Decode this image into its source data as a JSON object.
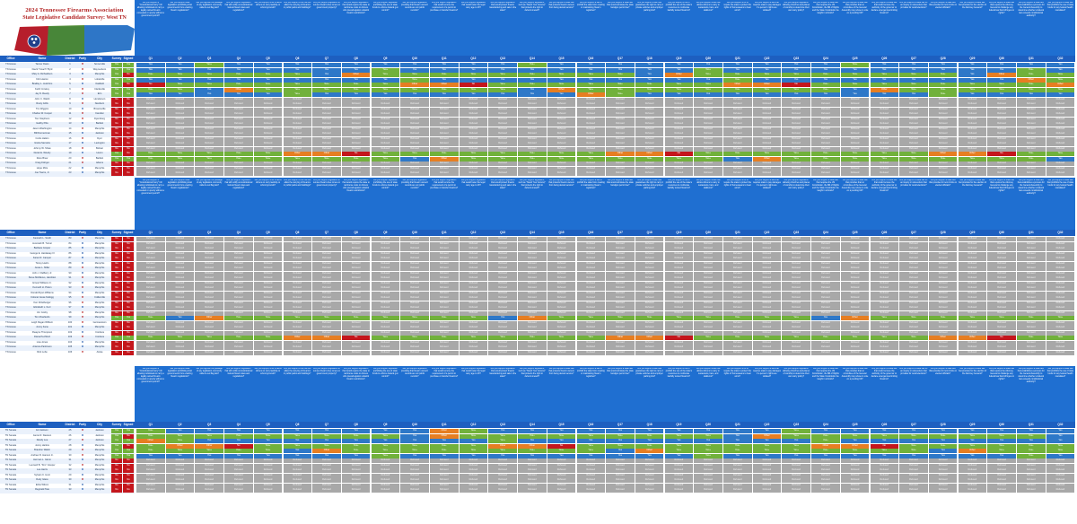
{
  "header": {
    "title": "2024 Tennessee Firearms Association",
    "subtitle": "State Legislative Candidate Survey: West TN"
  },
  "colors": {
    "Yes": "#2e78c8",
    "Yes+": "#71b13b",
    "No": "#c4161c",
    "Other": "#e67e22",
    "Refused": "#a8a8a8",
    "header_band": "#1f6fd1",
    "column_header": "#1d5fc0"
  },
  "columns": {
    "office": "Office",
    "name": "Name",
    "district": "District",
    "party": "Party",
    "city": "City",
    "survey": "Survey Returned",
    "signed": "Signed the leadership form",
    "questions": [
      "Q1",
      "Q2",
      "Q3",
      "Q4",
      "Q5",
      "Q6",
      "Q7",
      "Q8",
      "Q9",
      "Q10",
      "Q11",
      "Q12",
      "Q13",
      "Q14",
      "Q15",
      "Q16",
      "Q17",
      "Q18",
      "Q19",
      "Q20",
      "Q21",
      "Q22",
      "Q23",
      "Q24",
      "Q25",
      "Q26",
      "Q27",
      "Q28",
      "Q29",
      "Q30",
      "Q31",
      "Q32"
    ]
  },
  "question_texts": [
    "Will you support a \"Constitutional Carry\" bill allowing individuals to carry a legally-owned firearm concealed or openly without a government permit?",
    "Will you support state legislation prohibiting local governments from enacting firearm regulations?",
    "Will you oppose the passage of any legislation commonly called a red flag law?",
    "Will you support legislation that will nullify unconstitutional federal firearm laws and regulations?",
    "Will you support a bill to allow citizens to carry lawfully on school grounds?",
    "Will you support a bill that will allow the carrying of firearms in public parks and buildings?",
    "Will you support legislation to remove firearm-free zones on government property?",
    "Will you support legislation that would require the state to reimburse costs to citizens who prevail against unlawful firearm restrictions?",
    "Will you support legislation prohibiting the use of state funds to enforce federal gun control?",
    "Will you support legislation providing that firearm owners' records are not public records?",
    "Will you support legislation that would remove the requirement of a permit to purchase or transfer firearms?",
    "Will you support legislation that would lower the legal carry age to 18?",
    "Will you support legislation that would protect firearm manufacturing and sale in the state?",
    "Will you support legislation, such as \"Stand Your Ground,\" that protects the right to defend oneself?",
    "Will you support a state law that protects firearm owners from being denied service?",
    "Will you support a law to prohibit the state from creating or maintaining firearm registries?",
    "Will you support a state law that would eliminate the state handgun permit fee?",
    "Will you support a law that guarantees the right to carry in private vehicles and employer parking lots?",
    "Will you support a bill to prohibit the use of the state's resources to confiscate lawfully owned firearms?",
    "Will you support a law that allows citizens to carry in restaurants, bars, and stadiums?",
    "Will you support a bill to require the state to protect the rights of Tennesseans to bear arms?",
    "Will you support a law that requires state to pay damages if a person's rights are violated?",
    "Will you support legislation allowing churches and places of worship to determine their own carry policy?",
    "Will you support a state law that requires the US Constitution, the Bill of Rights and the State Constitution be taught in schools?",
    "Will you support a state law that provides that no committee of the General Assembly may refuse to vote on a pending bill?",
    "Will you support a state law that would remove the authority of the governor to declare emergencies limiting firearms?",
    "Will you support a state law for an inquiry or referendum that provides for recall elections?",
    "Will you support a state law that provides for term limits on elected officials?",
    "Will you support a state law that provides for the election of the Attorney General?",
    "Will you support a state law that requires the Attorney General to challenge any federal law that infringes on rights?",
    "Will you support a state law that establishes a process for the General Assembly to determine whether a federal law exceeds constitutional authority?",
    "Will you support a state law that prohibits the use of state funds for any federal health mandates?"
  ],
  "sections": [
    {
      "rows": [
        {
          "office": "TN House",
          "name": "Tanner Davis",
          "district": "1",
          "party": "R",
          "city": "Somerville",
          "survey": "Yes",
          "signed": "Yes",
          "pattern": "Y"
        },
        {
          "office": "TN House",
          "name": "David \"Coach\" Byrd",
          "district": "2",
          "party": "R",
          "city": "Waynesboro",
          "survey": "Yes",
          "signed": "Yes",
          "pattern": "Y"
        },
        {
          "office": "TN House",
          "name": "Mary A. Richardson",
          "district": "3",
          "party": "D",
          "city": "Memphis",
          "survey": "Yes",
          "signed": "No",
          "pattern": "G"
        },
        {
          "office": "TN House",
          "name": "Kirk Haston",
          "district": "4",
          "party": "R",
          "city": "Lobelville",
          "survey": "Yes",
          "signed": "Yes",
          "pattern": "Y"
        },
        {
          "office": "TN House",
          "name": "Bradley L. Hutchins",
          "district": "5",
          "party": "D",
          "city": "Oakfield",
          "survey": "Yes",
          "signed": "No",
          "pattern": "O"
        },
        {
          "office": "TN House",
          "name": "Keith Crowley",
          "district": "6",
          "party": "R",
          "city": "Clarksville",
          "survey": "Yes",
          "signed": "Yes",
          "pattern": "G"
        },
        {
          "office": "TN House",
          "name": "Jay D. Reedy",
          "district": "7",
          "party": "R",
          "city": "Erin",
          "survey": "Yes",
          "signed": "Yes",
          "pattern": "Y"
        },
        {
          "office": "TN House",
          "name": "John C. Walsh",
          "district": "8",
          "party": "D",
          "city": "Henderson",
          "survey": "No",
          "signed": "No",
          "pattern": "R"
        },
        {
          "office": "TN House",
          "name": "Rusty Grills",
          "district": "9",
          "party": "R",
          "city": "Newbern",
          "survey": "No",
          "signed": "No",
          "pattern": "R"
        },
        {
          "office": "TN House",
          "name": "Tim Wiggins",
          "district": "10",
          "party": "D",
          "city": "Brownsville",
          "survey": "No",
          "signed": "No",
          "pattern": "R"
        },
        {
          "office": "TN House",
          "name": "Charles W. Cooper",
          "district": "11",
          "party": "R",
          "city": "Camden",
          "survey": "No",
          "signed": "No",
          "pattern": "R"
        },
        {
          "office": "TN House",
          "name": "Tom Stephens",
          "district": "12",
          "party": "R",
          "city": "Dyersburg",
          "survey": "No",
          "signed": "No",
          "pattern": "R"
        },
        {
          "office": "TN House",
          "name": "Gabby Pitts",
          "district": "13",
          "party": "D",
          "city": "Bartlett",
          "survey": "No",
          "signed": "No",
          "pattern": "R"
        },
        {
          "office": "TN House",
          "name": "Jason Washington",
          "district": "14",
          "party": "R",
          "city": "Memphis",
          "survey": "No",
          "signed": "No",
          "pattern": "R"
        },
        {
          "office": "TN House",
          "name": "Bill Dunnerman",
          "district": "15",
          "party": "D",
          "city": "Jackson",
          "survey": "No",
          "signed": "No",
          "pattern": "R"
        },
        {
          "office": "TN House",
          "name": "Curtis Halton",
          "district": "16",
          "party": "R",
          "city": "Dyer",
          "survey": "No",
          "signed": "No",
          "pattern": "R"
        },
        {
          "office": "TN House",
          "name": "Gretta Samstra",
          "district": "17",
          "party": "D",
          "city": "Lexington",
          "survey": "No",
          "signed": "No",
          "pattern": "R"
        },
        {
          "office": "TN House",
          "name": "Johnny W. Shaw",
          "district": "18",
          "party": "R",
          "city": "Bolivar",
          "survey": "No",
          "signed": "No",
          "pattern": "R"
        },
        {
          "office": "TN House",
          "name": "Derek E. Woody",
          "district": "19",
          "party": "D",
          "city": "Huron",
          "survey": "Yes",
          "signed": "No",
          "pattern": "O"
        },
        {
          "office": "TN House",
          "name": "Ross Brew",
          "district": "20",
          "party": "R",
          "city": "Bartlett",
          "survey": "Yes",
          "signed": "Yes",
          "pattern": "G"
        },
        {
          "office": "TN House",
          "name": "Craig Fishgut",
          "district": "21",
          "party": "R",
          "city": "Adams",
          "survey": "No",
          "signed": "No",
          "pattern": "R"
        },
        {
          "office": "TN House",
          "name": "Hope Mize",
          "district": "22",
          "party": "D",
          "city": "Memphis",
          "survey": "No",
          "signed": "No",
          "pattern": "R"
        },
        {
          "office": "TN House",
          "name": "Joe Towns, Jr.",
          "district": "23",
          "party": "D",
          "city": "Memphis",
          "survey": "No",
          "signed": "No",
          "pattern": "R"
        }
      ]
    },
    {
      "rows": [
        {
          "office": "TN House",
          "name": "Kenneth L. Smith",
          "district": "83",
          "party": "R",
          "city": "Memphis",
          "survey": "No",
          "signed": "No",
          "pattern": "R"
        },
        {
          "office": "TN House",
          "name": "Jeremiah B. Turner",
          "district": "84",
          "party": "D",
          "city": "Memphis",
          "survey": "No",
          "signed": "No",
          "pattern": "R"
        },
        {
          "office": "TN House",
          "name": "Barbara Cooper",
          "district": "85",
          "party": "D",
          "city": "Memphis",
          "survey": "No",
          "signed": "No",
          "pattern": "R"
        },
        {
          "office": "TN House",
          "name": "George E. Hardaway III",
          "district": "86",
          "party": "D",
          "city": "Memphis",
          "survey": "No",
          "signed": "No",
          "pattern": "R"
        },
        {
          "office": "TN House",
          "name": "Karen R. Camper",
          "district": "87",
          "party": "D",
          "city": "Memphis",
          "survey": "No",
          "signed": "No",
          "pattern": "R"
        },
        {
          "office": "TN House",
          "name": "Torrey Harris",
          "district": "88",
          "party": "D",
          "city": "Memphis",
          "survey": "No",
          "signed": "No",
          "pattern": "R"
        },
        {
          "office": "TN House",
          "name": "Jesse L. Miller",
          "district": "89",
          "party": "R",
          "city": "Memphis",
          "survey": "No",
          "signed": "No",
          "pattern": "R"
        },
        {
          "office": "TN House",
          "name": "John J. DeBerry Jr.",
          "district": "90",
          "party": "D",
          "city": "Memphis",
          "survey": "No",
          "signed": "No",
          "pattern": "R"
        },
        {
          "office": "TN House",
          "name": "Steve McManus, Hamblen",
          "district": "91",
          "party": "R",
          "city": "Memphis",
          "survey": "No",
          "signed": "No",
          "pattern": "R"
        },
        {
          "office": "TN House",
          "name": "Ernest Williams Jr.",
          "district": "92",
          "party": "D",
          "city": "Memphis",
          "survey": "No",
          "signed": "No",
          "pattern": "R"
        },
        {
          "office": "TN House",
          "name": "Kenneth H. Pistun",
          "district": "93",
          "party": "R",
          "city": "Memphis",
          "survey": "No",
          "signed": "No",
          "pattern": "R"
        },
        {
          "office": "TN House",
          "name": "Donald Ryan Williams",
          "district": "94",
          "party": "D",
          "city": "Memphis",
          "survey": "No",
          "signed": "No",
          "pattern": "R"
        },
        {
          "office": "TN House",
          "name": "Colonel Jesse Kellogg",
          "district": "95",
          "party": "R",
          "city": "Collierville",
          "survey": "No",
          "signed": "No",
          "pattern": "R"
        },
        {
          "office": "TN House",
          "name": "Ken Zitzelberger",
          "district": "96",
          "party": "R",
          "city": "Memphis",
          "survey": "No",
          "signed": "No",
          "pattern": "R"
        },
        {
          "office": "TN House",
          "name": "Elizabeth L. Kerr",
          "district": "97",
          "party": "D",
          "city": "Memphis",
          "survey": "No",
          "signed": "No",
          "pattern": "R"
        },
        {
          "office": "TN House",
          "name": "Jim Cosby",
          "district": "98",
          "party": "R",
          "city": "Memphis",
          "survey": "No",
          "signed": "No",
          "pattern": "R"
        },
        {
          "office": "TN House",
          "name": "Tom Rowlands",
          "district": "99",
          "party": "R",
          "city": "Memphis",
          "survey": "Yes",
          "signed": "Yes",
          "pattern": "G"
        },
        {
          "office": "TN House",
          "name": "Leigh Regan Wilburn",
          "district": "100",
          "party": "R",
          "city": "Germantown",
          "survey": "No",
          "signed": "No",
          "pattern": "R"
        },
        {
          "office": "TN House",
          "name": "Junny Kane",
          "district": "101",
          "party": "D",
          "city": "Memphis",
          "survey": "No",
          "signed": "No",
          "pattern": "R"
        },
        {
          "office": "TN House",
          "name": "Dwayne Thompson",
          "district": "102",
          "party": "D",
          "city": "Cordova",
          "survey": "No",
          "signed": "No",
          "pattern": "R"
        },
        {
          "office": "TN House",
          "name": "Diana Pechford",
          "district": "103",
          "party": "R",
          "city": "Cordova",
          "survey": "Yes",
          "signed": "Yes",
          "pattern": "O"
        },
        {
          "office": "TN House",
          "name": "Lisa Jones",
          "district": "104",
          "party": "D",
          "city": "Memphis",
          "survey": "No",
          "signed": "No",
          "pattern": "R"
        },
        {
          "office": "TN House",
          "name": "Arianna Parkinson",
          "district": "105",
          "party": "D",
          "city": "Memphis",
          "survey": "No",
          "signed": "No",
          "pattern": "R"
        },
        {
          "office": "TN House",
          "name": "Rick Lobe",
          "district": "106",
          "party": "R",
          "city": "Atoka",
          "survey": "No",
          "signed": "No",
          "pattern": "R"
        }
      ]
    },
    {
      "rows": [
        {
          "office": "TN Senate",
          "name": "Ed Jackson",
          "district": "25",
          "party": "R",
          "city": "Jackson",
          "survey": "Yes",
          "signed": "Yes",
          "pattern": "Y"
        },
        {
          "office": "TN Senate",
          "name": "Jamie R. Dawson",
          "district": "26",
          "party": "D",
          "city": "Jackson",
          "survey": "Yes",
          "signed": "No",
          "pattern": "G"
        },
        {
          "office": "TN Senate",
          "name": "Randy Lee",
          "district": "27",
          "party": "R",
          "city": "Jackson",
          "survey": "Yes",
          "signed": "Yes",
          "pattern": "Y"
        },
        {
          "office": "TN Senate",
          "name": "Jenny Harlow",
          "district": "28",
          "party": "D",
          "city": "Memphis",
          "survey": "Yes",
          "signed": "No",
          "pattern": "O"
        },
        {
          "office": "TN Senate",
          "name": "Brandon Walsh",
          "district": "29",
          "party": "R",
          "city": "Memphis",
          "survey": "Yes",
          "signed": "Yes",
          "pattern": "G"
        },
        {
          "office": "TN Senate",
          "name": "Andrew R. Hanson Jr.",
          "district": "30",
          "party": "R",
          "city": "Memphis",
          "survey": "Yes",
          "signed": "Yes",
          "pattern": "Y"
        },
        {
          "office": "TN Senate",
          "name": "Herman L. Glenn",
          "district": "31",
          "party": "D",
          "city": "Memphis",
          "survey": "No",
          "signed": "No",
          "pattern": "R"
        },
        {
          "office": "TN Senate",
          "name": "Leonard B. \"Kim\" Hooper",
          "district": "32",
          "party": "R",
          "city": "Memphis",
          "survey": "No",
          "signed": "No",
          "pattern": "R"
        },
        {
          "office": "TN Senate",
          "name": "Lee Harris",
          "district": "33",
          "party": "D",
          "city": "Memphis",
          "survey": "No",
          "signed": "No",
          "pattern": "R"
        },
        {
          "office": "TN Senate",
          "name": "Sylvain K. Hunt",
          "district": "29",
          "party": "D",
          "city": "Memphis",
          "survey": "No",
          "signed": "No",
          "pattern": "R"
        },
        {
          "office": "TN Senate",
          "name": "Rudy Glass",
          "district": "30",
          "party": "R",
          "city": "Memphis",
          "survey": "No",
          "signed": "No",
          "pattern": "R"
        },
        {
          "office": "TN Senate",
          "name": "Erika Wilcox",
          "district": "31",
          "party": "D",
          "city": "Memphis",
          "survey": "No",
          "signed": "No",
          "pattern": "R"
        },
        {
          "office": "TN Senate",
          "name": "Reginald Tate",
          "district": "33",
          "party": "D",
          "city": "Memphis",
          "survey": "No",
          "signed": "No",
          "pattern": "R"
        }
      ]
    }
  ]
}
